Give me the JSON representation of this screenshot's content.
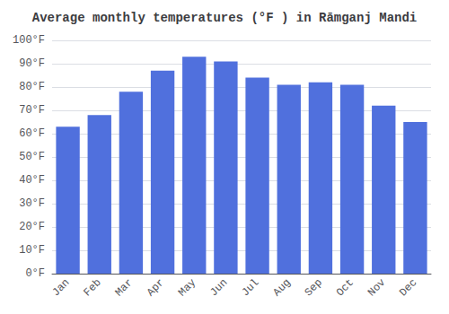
{
  "chart_data": {
    "type": "bar",
    "title": "Average monthly temperatures (°F ) in Rāmganj Mandi",
    "categories": [
      "Jan",
      "Feb",
      "Mar",
      "Apr",
      "May",
      "Jun",
      "Jul",
      "Aug",
      "Sep",
      "Oct",
      "Nov",
      "Dec"
    ],
    "values": [
      63,
      68,
      78,
      87,
      93,
      91,
      84,
      81,
      82,
      81,
      72,
      65
    ],
    "ylim": [
      0,
      100
    ],
    "yticks": [
      {
        "value": 0,
        "label": "0°F"
      },
      {
        "value": 10,
        "label": "10°F"
      },
      {
        "value": 20,
        "label": "20°F"
      },
      {
        "value": 30,
        "label": "30°F"
      },
      {
        "value": 40,
        "label": "40°F"
      },
      {
        "value": 50,
        "label": "50°F"
      },
      {
        "value": 60,
        "label": "60°F"
      },
      {
        "value": 70,
        "label": "70°F"
      },
      {
        "value": 80,
        "label": "80°F"
      },
      {
        "value": 90,
        "label": "90°F"
      },
      {
        "value": 100,
        "label": "100°F"
      }
    ],
    "grid": true
  }
}
